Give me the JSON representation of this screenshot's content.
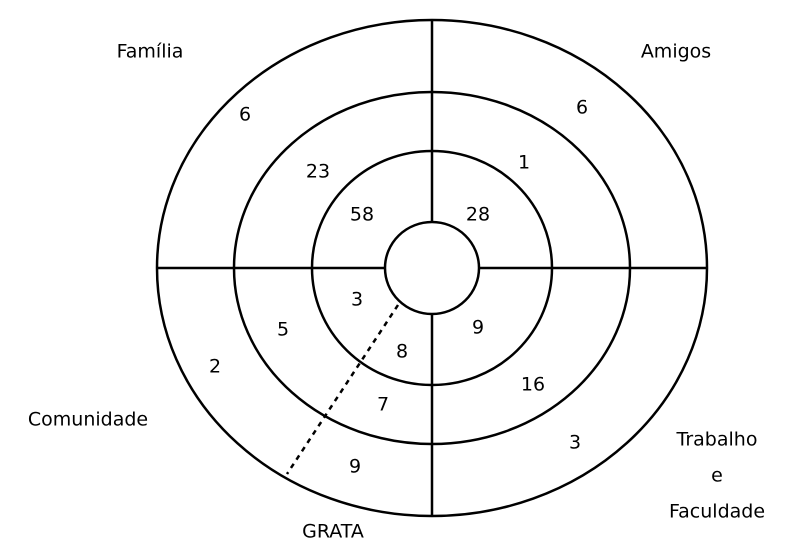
{
  "sectors": [
    {
      "label": [
        "Família"
      ],
      "values": [
        6,
        23,
        58
      ]
    },
    {
      "label": [
        "Amigos"
      ],
      "values": [
        6,
        1,
        28
      ]
    },
    {
      "label": [
        "Comunidade"
      ],
      "values": [
        2,
        5,
        3
      ]
    },
    {
      "label": [
        "GRATA"
      ],
      "values": [
        9,
        7,
        8
      ]
    },
    {
      "label": [
        "Trabalho",
        "e",
        "Faculdade"
      ],
      "values": [
        3,
        16,
        9
      ]
    }
  ]
}
